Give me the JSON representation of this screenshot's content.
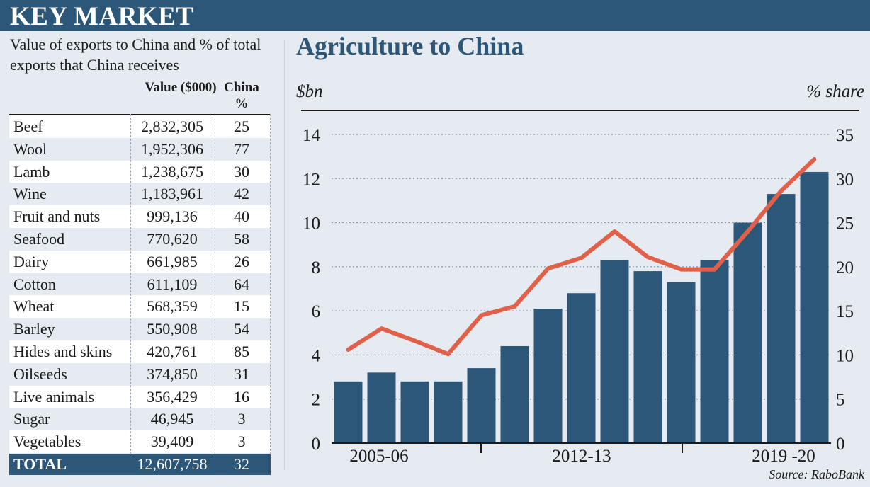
{
  "header": {
    "title": "KEY MARKET"
  },
  "table": {
    "subtitle": "Value of exports to China and % of total exports that China receives",
    "col_value": "Value ($000)",
    "col_pct": "China %",
    "rows": [
      {
        "name": "Beef",
        "value": "2,832,305",
        "pct": "25"
      },
      {
        "name": "Wool",
        "value": "1,952,306",
        "pct": "77"
      },
      {
        "name": "Lamb",
        "value": "1,238,675",
        "pct": "30"
      },
      {
        "name": "Wine",
        "value": "1,183,961",
        "pct": "42"
      },
      {
        "name": "Fruit and nuts",
        "value": "999,136",
        "pct": "40"
      },
      {
        "name": "Seafood",
        "value": "770,620",
        "pct": "58"
      },
      {
        "name": "Dairy",
        "value": "661,985",
        "pct": "26"
      },
      {
        "name": "Cotton",
        "value": "611,109",
        "pct": "64"
      },
      {
        "name": "Wheat",
        "value": "568,359",
        "pct": "15"
      },
      {
        "name": "Barley",
        "value": "550,908",
        "pct": "54"
      },
      {
        "name": "Hides and skins",
        "value": "420,761",
        "pct": "85"
      },
      {
        "name": "Oilseeds",
        "value": "374,850",
        "pct": "31"
      },
      {
        "name": "Live animals",
        "value": "356,429",
        "pct": "16"
      },
      {
        "name": "Sugar",
        "value": "46,945",
        "pct": "3"
      },
      {
        "name": "Vegetables",
        "value": "39,409",
        "pct": "3"
      }
    ],
    "total": {
      "name": "TOTAL",
      "value": "12,607,758",
      "pct": "32"
    }
  },
  "chart_data": {
    "type": "bar",
    "title": "Agriculture to China",
    "ylabel": "$bn",
    "y2label": "% share",
    "ylim": [
      0,
      14
    ],
    "y2lim": [
      0,
      35
    ],
    "yticks": [
      0,
      2,
      4,
      6,
      8,
      10,
      12,
      14
    ],
    "y2ticks": [
      0,
      5,
      10,
      15,
      20,
      25,
      30,
      35
    ],
    "xtick_labels": [
      "2005-06",
      "2012-13",
      "2019 -20"
    ],
    "series": [
      {
        "type": "bar",
        "values": [
          2.8,
          3.2,
          2.8,
          2.8,
          3.4,
          4.4,
          6.1,
          6.8,
          8.3,
          7.8,
          7.3,
          8.3,
          10.0,
          11.3,
          12.3
        ],
        "color": "#2d5778"
      },
      {
        "type": "line",
        "axis": "right",
        "values": [
          10.6,
          13.0,
          11.6,
          10.1,
          14.5,
          15.5,
          19.8,
          21.0,
          24.0,
          21.1,
          19.7,
          19.7,
          24.0,
          28.6,
          32.2
        ],
        "color": "#e0604a"
      }
    ],
    "source": "Source: RaboBank"
  }
}
